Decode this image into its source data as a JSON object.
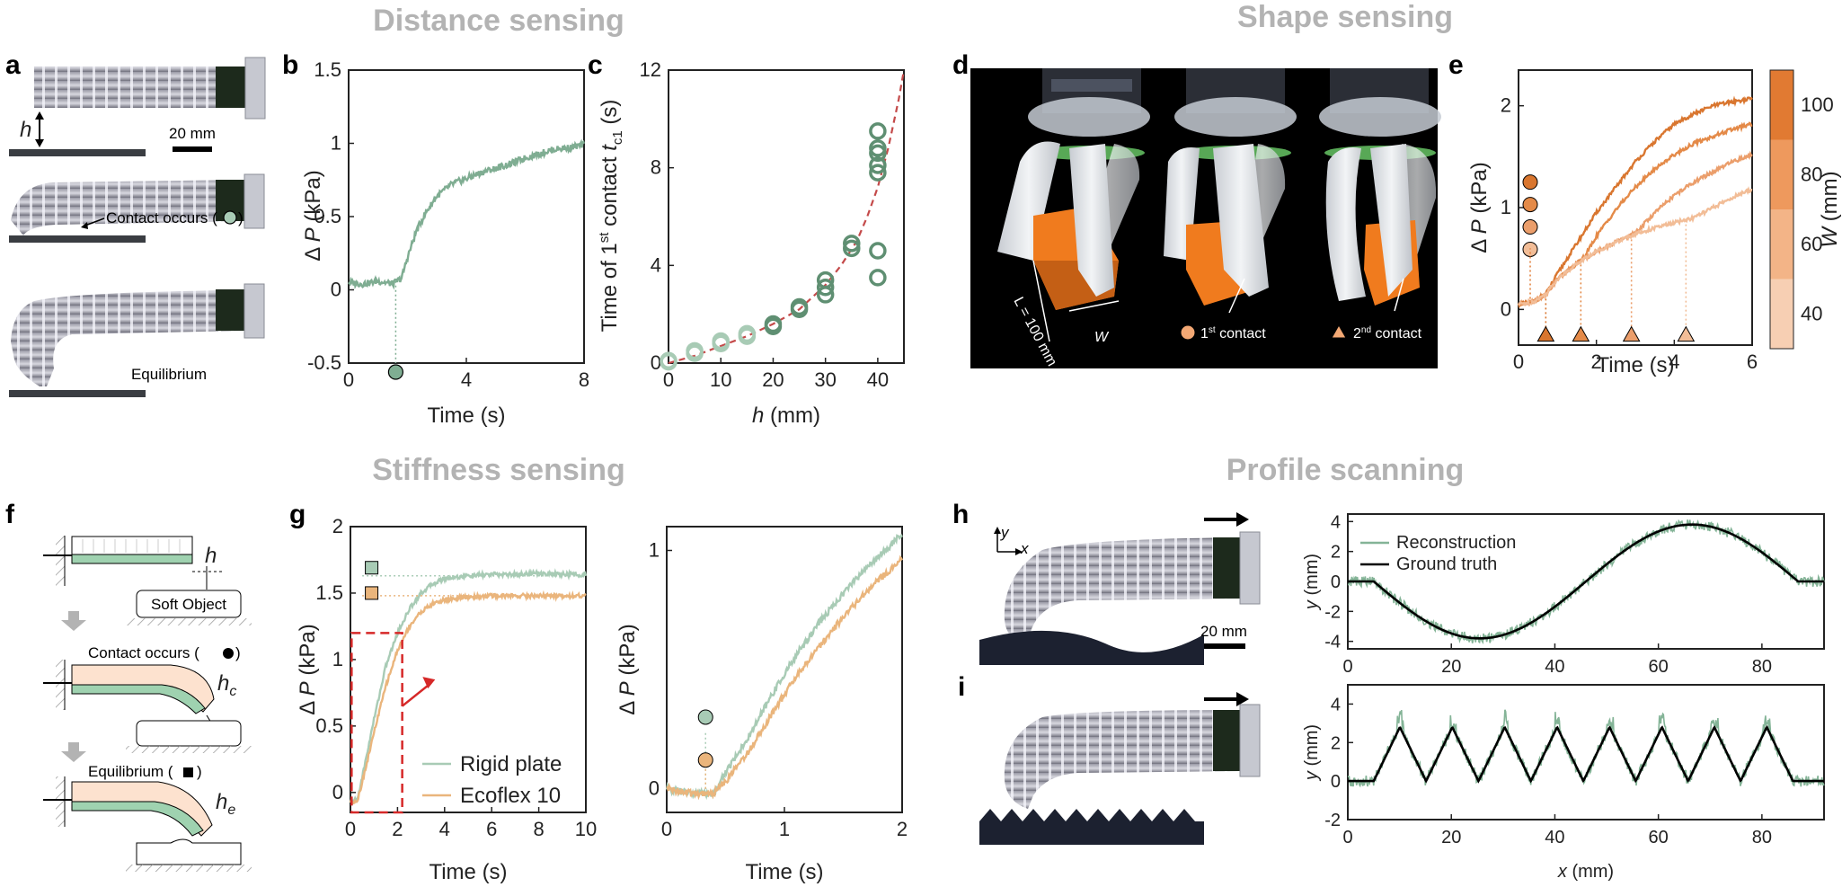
{
  "headers": {
    "distance": "Distance sensing",
    "shape": "Shape sensing",
    "stiffness": "Stiffness sensing",
    "profile": "Profile scanning"
  },
  "panel_a": {
    "h_label": "h",
    "scale_label": "20 mm",
    "contact_label": "Contact occurs (",
    "equilibrium_label": "Equilibrium"
  },
  "panel_d": {
    "length_label": "L = 100 mm",
    "w_label": "W",
    "contact1_label": "1",
    "contact1_sup": "st",
    "contact1_rest": " contact",
    "contact2_label": "2",
    "contact2_sup": "nd",
    "contact2_rest": " contact"
  },
  "panel_f": {
    "h_label": "h",
    "hc_label": "h",
    "hc_sub": "c",
    "he_label": "h",
    "he_sub": "e",
    "soft_object": "Soft Object",
    "contact_label": "Contact occurs (",
    "equilibrium_label": "Equilibrium ("
  },
  "panel_h": {
    "y_axis": "y",
    "x_axis": "x",
    "scale_label": "20 mm"
  },
  "chart_data": [
    {
      "panel": "b",
      "type": "line",
      "xlabel": "Time (s)",
      "ylabel_prefix": "Δ ",
      "ylabel_var": "P",
      "ylabel_unit": " (kPa)",
      "xlim": [
        0,
        8
      ],
      "ylim": [
        -0.5,
        1.5
      ],
      "xticks": [
        0,
        4,
        8
      ],
      "yticks": [
        -0.5,
        0,
        0.5,
        1,
        1.5
      ],
      "ytick_labels": [
        "-0.5",
        "0",
        "0.5",
        "1",
        "1.5"
      ],
      "series": [
        {
          "name": "pressure",
          "color": "#7fad92",
          "x": [
            0,
            0.5,
            1,
            1.5,
            1.8,
            2.0,
            2.3,
            2.6,
            3.0,
            3.5,
            4,
            4.5,
            5,
            5.5,
            6,
            6.5,
            7,
            7.5,
            8
          ],
          "y": [
            0.05,
            0.04,
            0.06,
            0.04,
            0.08,
            0.22,
            0.4,
            0.52,
            0.64,
            0.72,
            0.76,
            0.8,
            0.83,
            0.86,
            0.9,
            0.93,
            0.96,
            0.97,
            0.99
          ]
        }
      ],
      "contact_marker": {
        "x": 1.6,
        "y": 0.06
      }
    },
    {
      "panel": "c",
      "type": "scatter",
      "xlabel_var": "h",
      "xlabel_unit": " (mm)",
      "ylabel_main": "Time of 1",
      "ylabel_sup": "st",
      "ylabel_mid": " contact  ",
      "ylabel_var": "t",
      "ylabel_sub": "c1",
      "ylabel_unit": "  (s)",
      "xlim": [
        0,
        45
      ],
      "ylim": [
        0,
        12
      ],
      "xticks": [
        0,
        10,
        20,
        30,
        40
      ],
      "yticks": [
        0,
        4,
        8,
        12
      ],
      "points": [
        {
          "x": 0,
          "y": 0.05
        },
        {
          "x": 0,
          "y": 0.1
        },
        {
          "x": 5,
          "y": 0.4
        },
        {
          "x": 5,
          "y": 0.5
        },
        {
          "x": 10,
          "y": 0.8
        },
        {
          "x": 10,
          "y": 0.9
        },
        {
          "x": 15,
          "y": 1.1
        },
        {
          "x": 15,
          "y": 1.2
        },
        {
          "x": 20,
          "y": 1.5
        },
        {
          "x": 20,
          "y": 1.6
        },
        {
          "x": 25,
          "y": 2.2
        },
        {
          "x": 25,
          "y": 2.3
        },
        {
          "x": 30,
          "y": 2.8
        },
        {
          "x": 30,
          "y": 3.1
        },
        {
          "x": 30,
          "y": 3.4
        },
        {
          "x": 35,
          "y": 4.7
        },
        {
          "x": 35,
          "y": 4.9
        },
        {
          "x": 40,
          "y": 3.5
        },
        {
          "x": 40,
          "y": 4.6
        },
        {
          "x": 40,
          "y": 7.8
        },
        {
          "x": 40,
          "y": 8.1
        },
        {
          "x": 40,
          "y": 8.6
        },
        {
          "x": 40,
          "y": 8.8
        },
        {
          "x": 40,
          "y": 9.5
        }
      ],
      "fit": {
        "color": "#c44a4a",
        "x": [
          0,
          5,
          10,
          15,
          20,
          25,
          30,
          33,
          36,
          38,
          40,
          42,
          44,
          45
        ],
        "y": [
          0,
          0.3,
          0.7,
          1.1,
          1.6,
          2.2,
          3.2,
          4.0,
          5.0,
          6.0,
          7.2,
          8.8,
          10.8,
          12
        ]
      }
    },
    {
      "panel": "e",
      "type": "line",
      "xlabel": "Time (s)",
      "ylabel_prefix": "Δ ",
      "ylabel_var": "P",
      "ylabel_unit": " (kPa)",
      "xlim": [
        0,
        6
      ],
      "ylim": [
        -0.35,
        2.35
      ],
      "xticks": [
        0,
        2,
        4,
        6
      ],
      "yticks": [
        0,
        1,
        2
      ],
      "colorbar": {
        "label": "W",
        "unit": " (mm)",
        "ticks": [
          40,
          60,
          80,
          100
        ],
        "colors": [
          "#f7cfb3",
          "#f3b487",
          "#ee995d",
          "#e17a32"
        ]
      },
      "series": [
        {
          "name": "W = 100",
          "color": "#d9762f",
          "contact1": 0.3,
          "contact2": 0.7,
          "x": [
            0,
            0.4,
            0.7,
            1,
            1.5,
            2,
            2.5,
            3,
            3.5,
            4,
            4.5,
            5,
            5.5,
            6
          ],
          "y": [
            0.05,
            0.08,
            0.15,
            0.35,
            0.65,
            0.95,
            1.2,
            1.45,
            1.65,
            1.82,
            1.92,
            2.0,
            2.04,
            2.07
          ]
        },
        {
          "name": "W = 80",
          "color": "#e48a48",
          "contact1": 0.3,
          "contact2": 1.6,
          "x": [
            0,
            0.4,
            0.7,
            1,
            1.5,
            1.7,
            2,
            2.5,
            3,
            3.5,
            4,
            4.5,
            5,
            5.5,
            6
          ],
          "y": [
            0.05,
            0.08,
            0.15,
            0.3,
            0.45,
            0.52,
            0.72,
            0.98,
            1.2,
            1.38,
            1.52,
            1.63,
            1.7,
            1.77,
            1.82
          ]
        },
        {
          "name": "W = 60",
          "color": "#eb9e6b",
          "contact1": 0.3,
          "contact2": 2.9,
          "x": [
            0,
            0.4,
            0.7,
            1,
            1.5,
            2,
            2.5,
            3,
            3.5,
            4,
            4.5,
            5,
            5.5,
            6
          ],
          "y": [
            0.05,
            0.08,
            0.15,
            0.3,
            0.45,
            0.57,
            0.66,
            0.75,
            0.95,
            1.12,
            1.25,
            1.35,
            1.45,
            1.52
          ]
        },
        {
          "name": "W = 40",
          "color": "#f2bd97",
          "contact1": 0.3,
          "contact2": 4.3,
          "x": [
            0,
            0.4,
            0.7,
            1,
            1.5,
            2,
            2.5,
            3,
            3.5,
            4,
            4.5,
            5,
            5.5,
            6
          ],
          "y": [
            0.05,
            0.08,
            0.15,
            0.3,
            0.45,
            0.57,
            0.66,
            0.74,
            0.8,
            0.85,
            0.9,
            1.0,
            1.1,
            1.18
          ]
        }
      ]
    },
    {
      "panel": "g-left",
      "type": "line",
      "xlabel": "Time (s)",
      "ylabel_prefix": "Δ ",
      "ylabel_var": "P",
      "ylabel_unit": " (kPa)",
      "xlim": [
        0,
        10
      ],
      "ylim": [
        -0.15,
        2.0
      ],
      "xticks": [
        0,
        2,
        4,
        6,
        8,
        10
      ],
      "yticks": [
        0,
        0.5,
        1,
        1.5,
        2
      ],
      "series": [
        {
          "name": "Rigid plate",
          "color": "#a8cbb5",
          "x": [
            0,
            0.3,
            0.6,
            1,
            1.5,
            2,
            2.5,
            3,
            3.5,
            4,
            5,
            6,
            7,
            8,
            9,
            10
          ],
          "y": [
            -0.07,
            -0.05,
            0.2,
            0.55,
            0.95,
            1.2,
            1.38,
            1.5,
            1.57,
            1.61,
            1.63,
            1.64,
            1.64,
            1.65,
            1.64,
            1.64
          ]
        },
        {
          "name": "Ecoflex 10",
          "color": "#eab57c",
          "x": [
            0,
            0.3,
            0.6,
            1,
            1.5,
            2,
            2.5,
            3,
            3.5,
            4,
            5,
            6,
            7,
            8,
            9,
            10
          ],
          "y": [
            -0.07,
            -0.06,
            0.15,
            0.45,
            0.8,
            1.07,
            1.25,
            1.36,
            1.42,
            1.45,
            1.47,
            1.48,
            1.48,
            1.48,
            1.48,
            1.48
          ]
        }
      ],
      "equilibrium_levels": [
        1.63,
        1.48
      ]
    },
    {
      "panel": "g-right",
      "type": "line",
      "xlabel": "Time (s)",
      "ylabel_prefix": "Δ ",
      "ylabel_var": "P",
      "ylabel_unit": " (kPa)",
      "xlim": [
        0,
        2
      ],
      "ylim": [
        -0.1,
        1.1
      ],
      "xticks": [
        0,
        1,
        2
      ],
      "yticks": [
        0,
        1
      ],
      "series": [
        {
          "name": "Rigid plate",
          "color": "#a8cbb5",
          "contact": 0.33,
          "x": [
            0,
            0.2,
            0.4,
            0.5,
            0.7,
            0.9,
            1.1,
            1.3,
            1.5,
            1.7,
            1.9,
            2.0
          ],
          "y": [
            0.0,
            -0.02,
            -0.02,
            0.07,
            0.22,
            0.4,
            0.56,
            0.7,
            0.82,
            0.93,
            1.02,
            1.07
          ]
        },
        {
          "name": "Ecoflex 10",
          "color": "#eab57c",
          "contact": 0.33,
          "x": [
            0,
            0.2,
            0.4,
            0.5,
            0.7,
            0.9,
            1.1,
            1.3,
            1.5,
            1.7,
            1.9,
            2.0
          ],
          "y": [
            0.0,
            -0.02,
            -0.02,
            0.03,
            0.16,
            0.32,
            0.47,
            0.6,
            0.72,
            0.83,
            0.92,
            0.97
          ]
        }
      ]
    },
    {
      "panel": "h",
      "type": "line",
      "ylabel_var": "y",
      "ylabel_unit": " (mm)",
      "xlim": [
        0,
        92
      ],
      "ylim": [
        -4.5,
        4.5
      ],
      "xticks": [
        0,
        20,
        40,
        60,
        80
      ],
      "yticks": [
        -4,
        -2,
        0,
        2,
        4
      ],
      "legend": [
        "Reconstruction",
        "Ground truth"
      ],
      "ground_truth": {
        "shape": "sine",
        "x_start": 5,
        "x_end": 87,
        "amplitude": 3.8,
        "period": 82
      }
    },
    {
      "panel": "i",
      "type": "line",
      "xlabel_var": "x",
      "xlabel_unit": " (mm)",
      "ylabel_var": "y",
      "ylabel_unit": " (mm)",
      "xlim": [
        0,
        92
      ],
      "ylim": [
        -2,
        5
      ],
      "xticks": [
        0,
        20,
        40,
        60,
        80
      ],
      "yticks": [
        -2,
        0,
        2,
        4
      ],
      "ground_truth": {
        "shape": "triangle",
        "x_start": 5,
        "x_end": 86,
        "amplitude": 2.8,
        "teeth": 8
      }
    }
  ]
}
